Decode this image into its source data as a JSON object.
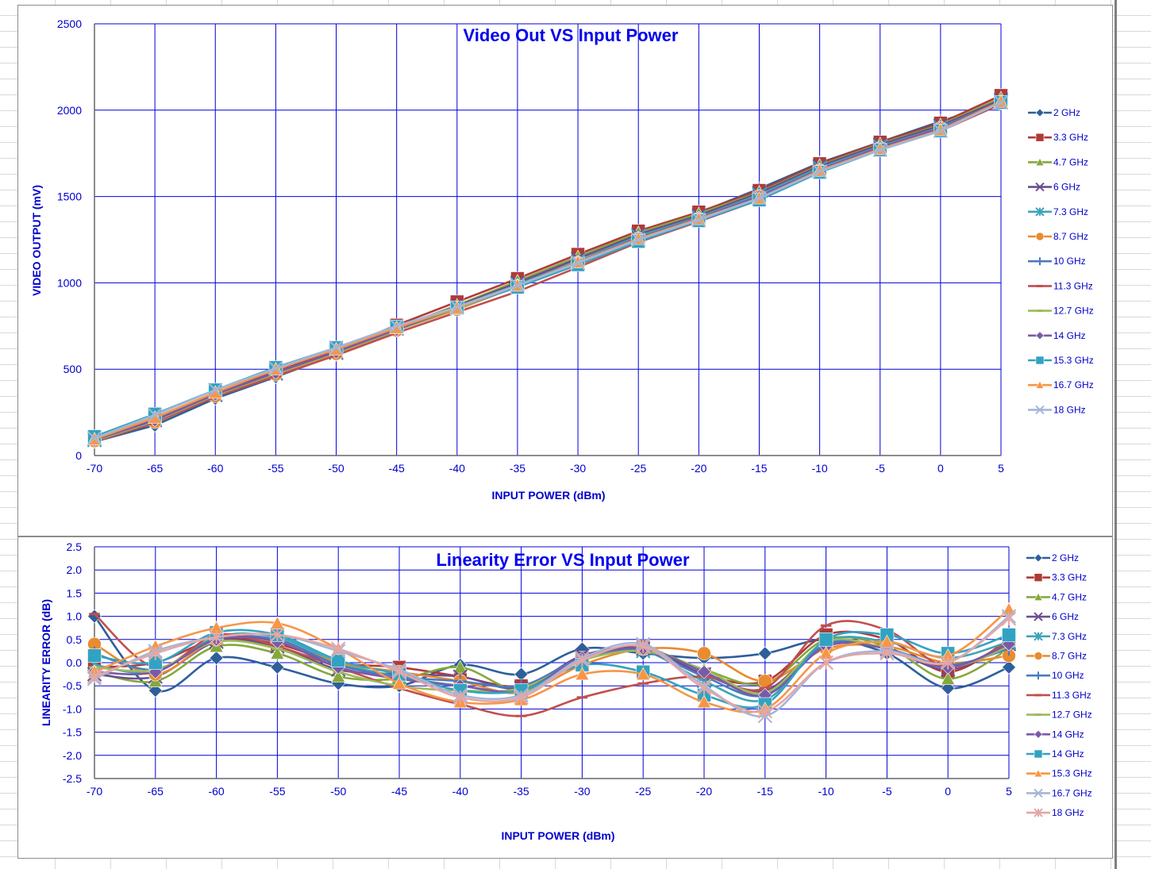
{
  "chart_data": [
    {
      "type": "line",
      "title": "Video Out VS Input Power",
      "xlabel": "INPUT POWER (dBm)",
      "ylabel": "VIDEO OUTPUT (mV)",
      "xlim": [
        -70,
        5
      ],
      "ylim": [
        0,
        2500
      ],
      "x_ticks": [
        "-70",
        "-65",
        "-60",
        "-55",
        "-50",
        "-45",
        "-40",
        "-35",
        "-30",
        "-25",
        "-20",
        "-15",
        "-10",
        "-5",
        "0",
        "5"
      ],
      "y_ticks": [
        "0",
        "500",
        "1000",
        "1500",
        "2000",
        "2500"
      ],
      "grid": true,
      "legend_position": "right",
      "x": [
        -70,
        -65,
        -60,
        -55,
        -50,
        -45,
        -40,
        -35,
        -30,
        -25,
        -20,
        -15,
        -10,
        -5,
        0,
        5
      ],
      "series": [
        {
          "name": "2 GHz",
          "color": "#2e5f9b",
          "marker": "diamond",
          "values": [
            80,
            175,
            330,
            455,
            585,
            725,
            860,
            1000,
            1140,
            1285,
            1405,
            1545,
            1695,
            1815,
            1935,
            2050
          ]
        },
        {
          "name": "3.3 GHz",
          "color": "#b03a38",
          "marker": "square",
          "values": [
            95,
            215,
            360,
            485,
            610,
            755,
            890,
            1025,
            1165,
            1300,
            1410,
            1535,
            1690,
            1815,
            1925,
            2085
          ]
        },
        {
          "name": "4.7 GHz",
          "color": "#86a83b",
          "marker": "triangle",
          "values": [
            85,
            200,
            355,
            480,
            600,
            740,
            870,
            1010,
            1150,
            1290,
            1400,
            1525,
            1680,
            1805,
            1915,
            2070
          ]
        },
        {
          "name": "6 GHz",
          "color": "#6b4e8f",
          "marker": "x",
          "values": [
            90,
            205,
            350,
            475,
            595,
            735,
            865,
            1000,
            1140,
            1280,
            1390,
            1520,
            1675,
            1800,
            1910,
            2060
          ]
        },
        {
          "name": "7.3 GHz",
          "color": "#3fa4b8",
          "marker": "star",
          "values": [
            90,
            210,
            355,
            480,
            600,
            735,
            860,
            990,
            1125,
            1270,
            1380,
            1510,
            1665,
            1790,
            1900,
            2050
          ]
        },
        {
          "name": "8.7 GHz",
          "color": "#e98b2f",
          "marker": "circle",
          "values": [
            85,
            195,
            345,
            470,
            590,
            725,
            845,
            980,
            1115,
            1255,
            1370,
            1500,
            1650,
            1780,
            1895,
            2040
          ]
        },
        {
          "name": "10 GHz",
          "color": "#4a7bbf",
          "marker": "plus",
          "values": [
            90,
            205,
            350,
            475,
            600,
            730,
            855,
            985,
            1120,
            1260,
            1375,
            1500,
            1655,
            1785,
            1895,
            2045
          ]
        },
        {
          "name": "11.3 GHz",
          "color": "#c0504d",
          "marker": "dash",
          "values": [
            80,
            190,
            340,
            460,
            580,
            710,
            830,
            950,
            1090,
            1235,
            1355,
            1480,
            1640,
            1770,
            1880,
            2035
          ]
        },
        {
          "name": "12.7 GHz",
          "color": "#9bbb59",
          "marker": "dash",
          "values": [
            85,
            200,
            350,
            475,
            595,
            725,
            850,
            980,
            1115,
            1255,
            1370,
            1495,
            1650,
            1780,
            1890,
            2045
          ]
        },
        {
          "name": "14 GHz",
          "color": "#7a5aa8",
          "marker": "diamond",
          "values": [
            90,
            205,
            355,
            480,
            600,
            730,
            855,
            985,
            1120,
            1260,
            1375,
            1500,
            1655,
            1785,
            1895,
            2050
          ]
        },
        {
          "name": "15.3 GHz",
          "color": "#31a3c2",
          "marker": "square",
          "values": [
            110,
            240,
            380,
            510,
            625,
            745,
            855,
            975,
            1105,
            1240,
            1360,
            1480,
            1640,
            1770,
            1880,
            2045
          ]
        },
        {
          "name": "16.7 GHz",
          "color": "#f79646",
          "marker": "triangle",
          "values": [
            95,
            220,
            365,
            500,
            615,
            740,
            855,
            985,
            1120,
            1255,
            1370,
            1490,
            1650,
            1775,
            1885,
            2050
          ]
        },
        {
          "name": "18 GHz",
          "color": "#a5b6d6",
          "marker": "x",
          "values": [
            100,
            235,
            380,
            505,
            625,
            750,
            860,
            985,
            1115,
            1250,
            1365,
            1490,
            1645,
            1770,
            1880,
            2045
          ]
        }
      ]
    },
    {
      "type": "line",
      "title": "Linearity Error VS Input Power",
      "xlabel": "INPUT POWER (dBm)",
      "ylabel": "LINEARITY ERROR (dB)",
      "xlim": [
        -70,
        5
      ],
      "ylim": [
        -2.5,
        2.5
      ],
      "x_ticks": [
        "-70",
        "-65",
        "-60",
        "-55",
        "-50",
        "-45",
        "-40",
        "-35",
        "-30",
        "-25",
        "-20",
        "-15",
        "-10",
        "-5",
        "0",
        "5"
      ],
      "y_ticks": [
        "-2.5",
        "-2.0",
        "-1.5",
        "-1.0",
        "-0.5",
        "0.0",
        "0.5",
        "1.0",
        "1.5",
        "2.0",
        "2.5"
      ],
      "grid": true,
      "smooth": true,
      "legend_position": "right",
      "x": [
        -70,
        -65,
        -60,
        -55,
        -50,
        -45,
        -40,
        -35,
        -30,
        -25,
        -20,
        -15,
        -10,
        -5,
        0,
        5
      ],
      "series": [
        {
          "name": "2 GHz",
          "color": "#2e5f9b",
          "marker": "diamond",
          "values": [
            1.0,
            -0.6,
            0.1,
            -0.1,
            -0.45,
            -0.5,
            -0.05,
            -0.25,
            0.3,
            0.2,
            0.1,
            0.2,
            0.5,
            0.2,
            -0.55,
            -0.1
          ]
        },
        {
          "name": "3.3 GHz",
          "color": "#b03a38",
          "marker": "square",
          "values": [
            -0.1,
            0.0,
            0.5,
            0.4,
            0.0,
            -0.1,
            -0.3,
            -0.5,
            0.1,
            0.35,
            -0.25,
            -0.4,
            0.6,
            0.5,
            -0.2,
            0.5
          ]
        },
        {
          "name": "4.7 GHz",
          "color": "#86a83b",
          "marker": "triangle",
          "values": [
            -0.2,
            -0.4,
            0.35,
            0.2,
            -0.3,
            -0.35,
            -0.1,
            -0.6,
            0.05,
            0.3,
            -0.15,
            -0.45,
            0.5,
            0.35,
            -0.35,
            0.3
          ]
        },
        {
          "name": "6 GHz",
          "color": "#6b4e8f",
          "marker": "x",
          "values": [
            -0.25,
            -0.3,
            0.45,
            0.35,
            -0.15,
            -0.25,
            -0.3,
            -0.55,
            0.15,
            0.3,
            -0.25,
            -0.6,
            0.4,
            0.3,
            -0.15,
            0.4
          ]
        },
        {
          "name": "7.3 GHz",
          "color": "#3fa4b8",
          "marker": "star",
          "values": [
            -0.05,
            -0.2,
            0.55,
            0.55,
            0.0,
            -0.3,
            -0.5,
            -0.6,
            0.05,
            0.25,
            -0.4,
            -0.8,
            0.45,
            0.45,
            0.1,
            0.45
          ]
        },
        {
          "name": "8.7 GHz",
          "color": "#e98b2f",
          "marker": "circle",
          "values": [
            0.4,
            -0.25,
            0.5,
            0.45,
            0.0,
            -0.2,
            -0.4,
            -0.65,
            -0.05,
            0.3,
            0.2,
            -0.4,
            0.3,
            0.35,
            0.0,
            0.15
          ]
        },
        {
          "name": "10 GHz",
          "color": "#4a7bbf",
          "marker": "plus",
          "values": [
            0.2,
            -0.15,
            0.5,
            0.5,
            -0.05,
            -0.3,
            -0.4,
            -0.5,
            0.1,
            0.25,
            -0.3,
            -0.7,
            0.4,
            0.3,
            -0.05,
            0.3
          ]
        },
        {
          "name": "11.3 GHz",
          "color": "#c0504d",
          "marker": "dash",
          "values": [
            1.05,
            -0.1,
            0.6,
            0.35,
            -0.1,
            -0.55,
            -0.9,
            -1.15,
            -0.75,
            -0.45,
            -0.3,
            -0.55,
            0.8,
            0.7,
            -0.1,
            0.45
          ]
        },
        {
          "name": "12.7 GHz",
          "color": "#9bbb59",
          "marker": "dash",
          "values": [
            -0.1,
            -0.15,
            0.45,
            0.3,
            -0.2,
            -0.5,
            -0.6,
            -0.55,
            0.05,
            0.25,
            -0.15,
            -0.65,
            0.45,
            0.3,
            -0.1,
            0.35
          ]
        },
        {
          "name": "14 GHz",
          "color": "#7a5aa8",
          "marker": "diamond",
          "values": [
            -0.2,
            -0.2,
            0.5,
            0.45,
            -0.1,
            -0.35,
            -0.5,
            -0.6,
            0.1,
            0.3,
            -0.2,
            -0.7,
            0.35,
            0.3,
            -0.1,
            0.4
          ]
        },
        {
          "name": "14 GHz",
          "color": "#31a3c2",
          "marker": "square",
          "values": [
            0.15,
            0.0,
            0.65,
            0.6,
            0.05,
            -0.25,
            -0.6,
            -0.6,
            -0.05,
            -0.2,
            -0.7,
            -0.9,
            0.5,
            0.6,
            0.2,
            0.6
          ]
        },
        {
          "name": "15.3 GHz",
          "color": "#f79646",
          "marker": "triangle",
          "values": [
            -0.2,
            0.35,
            0.75,
            0.85,
            0.3,
            -0.45,
            -0.85,
            -0.8,
            -0.25,
            -0.25,
            -0.85,
            -1.0,
            0.2,
            0.45,
            0.15,
            1.15
          ]
        },
        {
          "name": "16.7 GHz",
          "color": "#a5b6d6",
          "marker": "x",
          "values": [
            -0.35,
            0.25,
            0.55,
            0.6,
            0.25,
            -0.15,
            -0.7,
            -0.7,
            0.1,
            0.4,
            -0.5,
            -1.15,
            0.0,
            0.25,
            0.0,
            1.0
          ]
        },
        {
          "name": "18 GHz",
          "color": "#e6a6a6",
          "marker": "star",
          "values": [
            -0.3,
            0.2,
            0.55,
            0.6,
            0.3,
            -0.2,
            -0.75,
            -0.75,
            0.05,
            0.35,
            -0.55,
            -1.05,
            0.0,
            0.2,
            0.0,
            0.95
          ]
        }
      ]
    }
  ]
}
